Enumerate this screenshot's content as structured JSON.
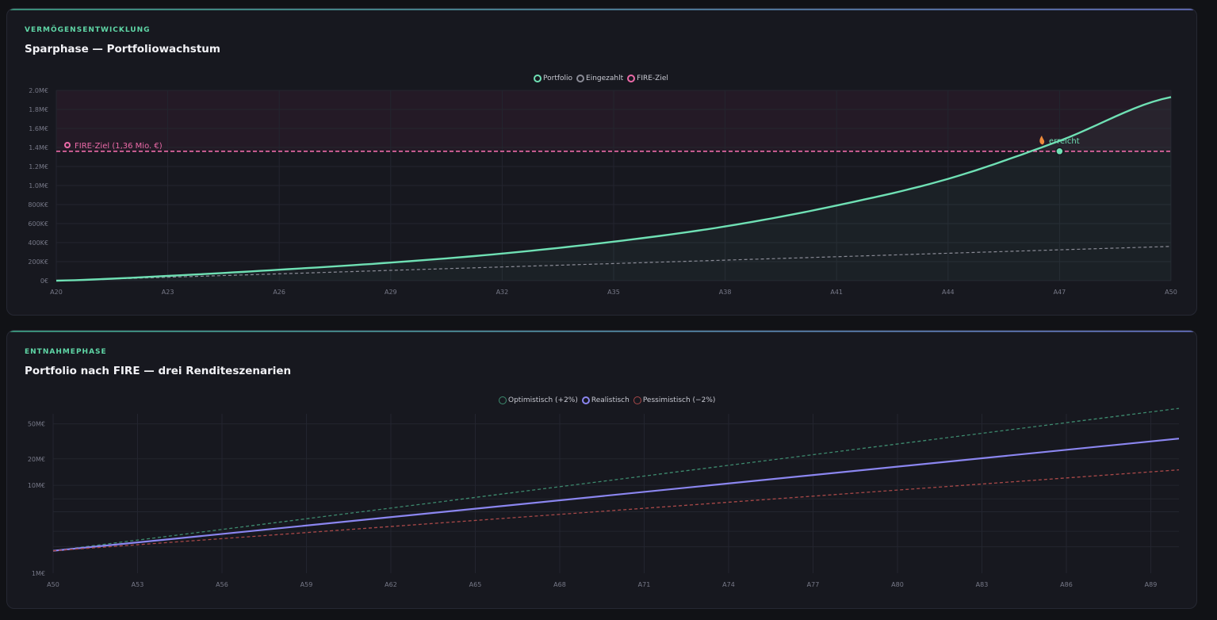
{
  "colors": {
    "portfolio": "#6fe0b4",
    "eingezahlt": "#8a8b96",
    "fire": "#ec6aa8",
    "optimistic": "#3d8a6e",
    "realistic": "#8b86f0",
    "pessimistic": "#a84848",
    "grid": "#23252f",
    "axis_text": "#777988"
  },
  "card1": {
    "eyebrow": "VERMÖGENSENTWICKLUNG",
    "title": "Sparphase — Portfoliowachstum",
    "legend": [
      "Portfolio",
      "Eingezahlt",
      "FIRE-Ziel"
    ],
    "fire_label": "FIRE-Ziel (1,36 Mio. €)",
    "reached_label": "erreicht",
    "fire_icon": "target-icon",
    "reached_icon": "flame-icon"
  },
  "card2": {
    "eyebrow": "ENTNAHMEPHASE",
    "title": "Portfolio nach FIRE — drei Renditeszenarien",
    "legend": [
      "Optimistisch (+2%)",
      "Realistisch",
      "Pessimistisch (−2%)"
    ]
  },
  "chart_data": [
    {
      "type": "area",
      "title": "Sparphase — Portfoliowachstum",
      "x_ticks": [
        "A20",
        "A23",
        "A26",
        "A29",
        "A32",
        "A35",
        "A38",
        "A41",
        "A44",
        "A47",
        "A50"
      ],
      "y_ticks": [
        "0€",
        "200K€",
        "400K€",
        "600K€",
        "800K€",
        "1.0M€",
        "1.2M€",
        "1.4M€",
        "1.6M€",
        "1.8M€",
        "2.0M€"
      ],
      "ylim": [
        0,
        2000000
      ],
      "x_range": [
        20,
        50
      ],
      "series": [
        {
          "name": "Portfolio",
          "x": [
            20,
            23,
            26,
            29,
            32,
            35,
            38,
            41,
            44,
            47,
            50
          ],
          "values": [
            0,
            50000,
            115000,
            190000,
            285000,
            410000,
            570000,
            790000,
            1070000,
            1470000,
            1930000
          ]
        },
        {
          "name": "Eingezahlt",
          "x": [
            20,
            23,
            26,
            29,
            32,
            35,
            38,
            41,
            44,
            47,
            50
          ],
          "values": [
            0,
            36000,
            72000,
            108000,
            144000,
            180000,
            216000,
            252000,
            288000,
            324000,
            360000
          ]
        }
      ],
      "fire_target": 1360000,
      "fire_reached_age": 47,
      "grid": true,
      "legend_position": "top-center"
    },
    {
      "type": "line",
      "title": "Portfolio nach FIRE — drei Renditeszenarien",
      "y_scale": "log",
      "x_ticks": [
        "A50",
        "A53",
        "A56",
        "A59",
        "A62",
        "A65",
        "A68",
        "A71",
        "A74",
        "A77",
        "A80",
        "A83",
        "A86",
        "A89"
      ],
      "y_ticks": [
        "1M€",
        "10M€",
        "20M€",
        "50M€"
      ],
      "y_tick_values": [
        1000000,
        10000000,
        20000000,
        50000000
      ],
      "ylim": [
        1000000,
        65000000
      ],
      "x_range": [
        50,
        90
      ],
      "series": [
        {
          "name": "Optimistisch (+2%)",
          "x": [
            50,
            90
          ],
          "values": [
            1800000,
            75000000
          ]
        },
        {
          "name": "Realistisch",
          "x": [
            50,
            90
          ],
          "values": [
            1800000,
            34000000
          ]
        },
        {
          "name": "Pessimistisch (−2%)",
          "x": [
            50,
            90
          ],
          "values": [
            1800000,
            15000000
          ]
        }
      ],
      "grid": true,
      "legend_position": "top-center"
    }
  ]
}
